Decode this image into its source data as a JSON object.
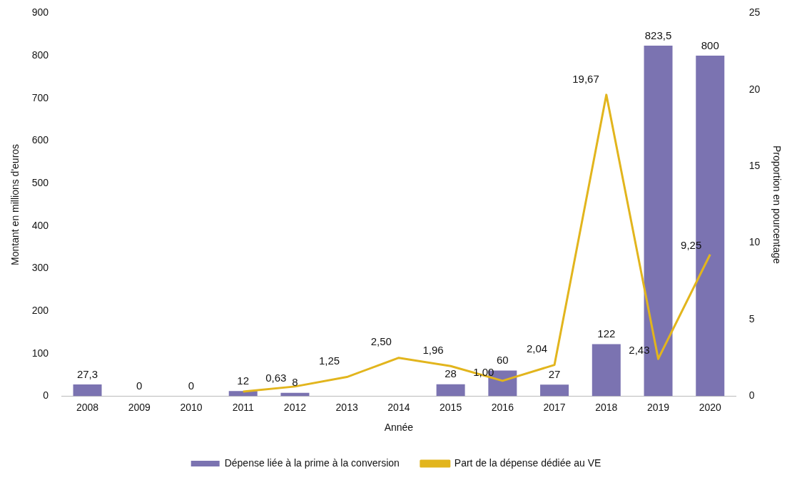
{
  "chart_data": {
    "type": "bar",
    "xlabel": "Année",
    "ylabel": "Montant en millions d'euros",
    "y2label": "Proportion en pourcentage",
    "categories": [
      "2008",
      "2009",
      "2010",
      "2011",
      "2012",
      "2013",
      "2014",
      "2015",
      "2016",
      "2017",
      "2018",
      "2019",
      "2020"
    ],
    "series": [
      {
        "name": "Dépense liée à la prime à la conversion",
        "color": "#7b73b1",
        "values": [
          27.3,
          0,
          0,
          12,
          8,
          null,
          null,
          28,
          60,
          27,
          122,
          823.5,
          800
        ],
        "value_labels": [
          "27,3",
          "0",
          "0",
          "12",
          "8",
          null,
          null,
          "28",
          "60",
          "27",
          "122",
          "823,5",
          "800"
        ]
      },
      {
        "name": "Part de la dépense dédiée au VE",
        "type": "line",
        "axis": "y2",
        "color": "#e2b51d",
        "values": [
          null,
          null,
          null,
          0.3,
          0.63,
          1.25,
          2.5,
          1.96,
          1.0,
          2.04,
          19.67,
          2.43,
          9.25
        ],
        "value_labels": [
          null,
          null,
          null,
          null,
          "0,63",
          "1,25",
          "2,50",
          "1,96",
          "1,00",
          "2,04",
          "19,67",
          "2,43",
          "9,25"
        ]
      }
    ],
    "ylim": [
      0,
      900
    ],
    "yticks": [
      0,
      100,
      200,
      300,
      400,
      500,
      600,
      700,
      800,
      900
    ],
    "y2lim": [
      0,
      25
    ],
    "y2ticks": [
      0,
      5,
      10,
      15,
      20,
      25
    ],
    "grid": false,
    "legend": "bottom",
    "marker": "none",
    "line_style": "solid"
  }
}
